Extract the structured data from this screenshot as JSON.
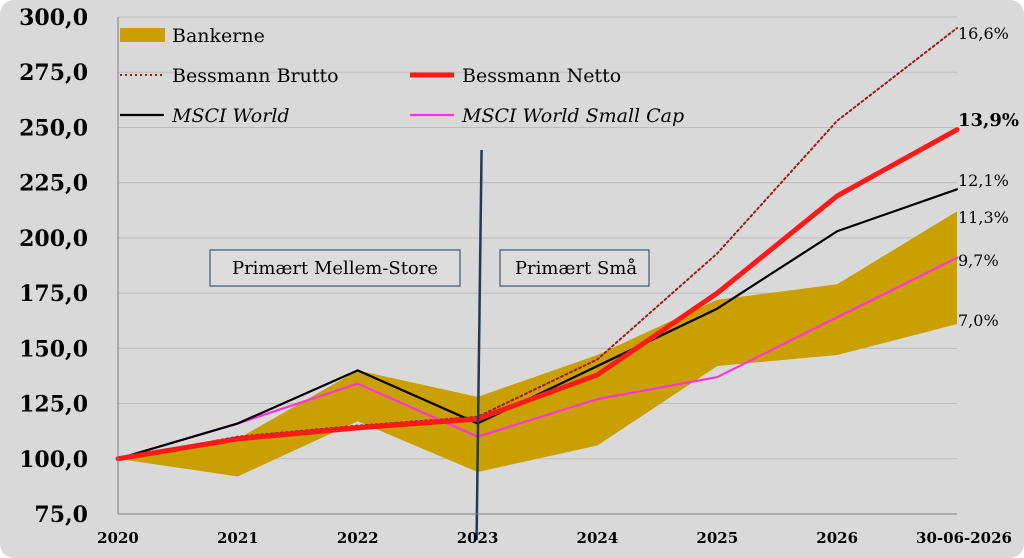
{
  "chart_data": {
    "type": "line",
    "categories": [
      "2020",
      "2021",
      "2022",
      "2023",
      "2024",
      "2025",
      "2026",
      "30-06-2026"
    ],
    "y_ticks": [
      "75,0",
      "100,0",
      "125,0",
      "150,0",
      "175,0",
      "200,0",
      "225,0",
      "250,0",
      "275,0",
      "300,0"
    ],
    "ylim": [
      75,
      300
    ],
    "grid": true,
    "band": {
      "name": "Bankerne",
      "color": "#c9a000",
      "upper": [
        100,
        109,
        140,
        128,
        147,
        172,
        179,
        212
      ],
      "lower": [
        100,
        92,
        117,
        94,
        106,
        142,
        147,
        161
      ]
    },
    "series": [
      {
        "name": "Bessmann Brutto",
        "color": "#a31a1a",
        "style": "dotted",
        "values": [
          100,
          110,
          115,
          119,
          145,
          193,
          253,
          295
        ],
        "end_label": "16,6%"
      },
      {
        "name": "Bessmann Netto",
        "color": "#ff1a1a",
        "style": "thick",
        "values": [
          100,
          109,
          114,
          118,
          138,
          175,
          219,
          249
        ],
        "end_label": "13,9%"
      },
      {
        "name": "MSCI World",
        "color": "#000000",
        "style": "solid",
        "values": [
          100,
          116,
          140,
          116,
          142,
          168,
          203,
          222
        ],
        "end_label": "12,1%"
      },
      {
        "name": "MSCI World Small Cap",
        "color": "#ff33dd",
        "style": "solid",
        "values": [
          100,
          116,
          134,
          110,
          127,
          137,
          164,
          191
        ],
        "end_label": "9,7%"
      }
    ],
    "band_end_labels": {
      "upper": "11,3%",
      "lower": "7,0%"
    },
    "divider": {
      "at": "2023"
    },
    "regions": [
      "Primært Mellem-Store",
      "Primært Små"
    ]
  }
}
